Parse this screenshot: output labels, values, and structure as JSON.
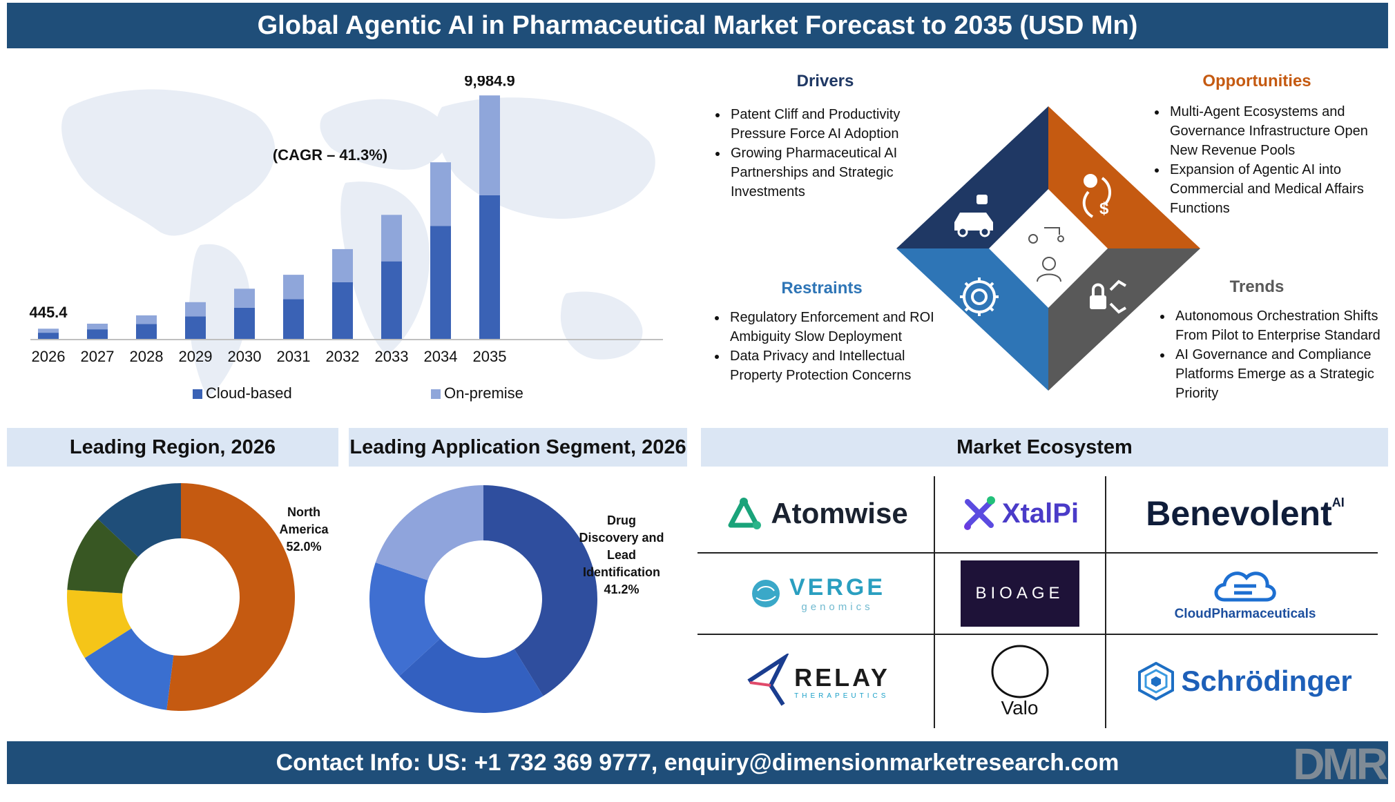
{
  "header": {
    "title": "Global Agentic AI in Pharmaceutical Market Forecast to 2035 (USD Mn)"
  },
  "footer": {
    "contact": "Contact Info: US: +1 732 369 9777, enquiry@dimensionmarketresearch.com",
    "logo_text": "DMR"
  },
  "colors": {
    "navy": "#1f4e79",
    "cloud": "#3a62b5",
    "onprem": "#8fa6da",
    "orange": "#c55a11",
    "panel": "#dbe6f4"
  },
  "chart_data": [
    {
      "type": "bar",
      "stacked": true,
      "categories": [
        "2026",
        "2027",
        "2028",
        "2029",
        "2030",
        "2031",
        "2032",
        "2033",
        "2034",
        "2035"
      ],
      "series": [
        {
          "name": "Cloud-based",
          "values": [
            280,
            420,
            640,
            950,
            1300,
            1650,
            2350,
            3200,
            4650,
            5900
          ]
        },
        {
          "name": "On-premise",
          "values": [
            165.4,
            230,
            350,
            580,
            780,
            1000,
            1350,
            1900,
            2600,
            4084.9
          ]
        }
      ],
      "totals": [
        445.4,
        650,
        990,
        1530,
        2080,
        2650,
        3700,
        5100,
        7250,
        9984.9
      ],
      "data_labels": {
        "first": "445.4",
        "last": "9,984.9"
      },
      "annotation": "(CAGR – 41.3%)",
      "ylim": [
        0,
        10500
      ],
      "legend_position": "bottom"
    },
    {
      "type": "pie",
      "donut": true,
      "title": "Leading Region, 2026",
      "slices": [
        {
          "name": "North America",
          "value": 52.0,
          "color": "#c55a11"
        },
        {
          "name": "",
          "value": 14.0,
          "color": "#3a6fd0"
        },
        {
          "name": "",
          "value": 10.0,
          "color": "#f5c518"
        },
        {
          "name": "",
          "value": 11.0,
          "color": "#385723"
        },
        {
          "name": "",
          "value": 13.0,
          "color": "#1f4e79"
        }
      ],
      "label": {
        "lines": [
          "North",
          "America",
          "52.0%"
        ]
      }
    },
    {
      "type": "pie",
      "donut": true,
      "title": "Leading Application Segment, 2026",
      "slices": [
        {
          "name": "Drug Discovery and Lead Identification",
          "value": 41.2,
          "color": "#2f4e9e"
        },
        {
          "name": "",
          "value": 22.0,
          "color": "#3360c0"
        },
        {
          "name": "",
          "value": 17.0,
          "color": "#3f6fd1"
        },
        {
          "name": "",
          "value": 19.8,
          "color": "#8fa4dc"
        }
      ],
      "label": {
        "lines": [
          "Drug",
          "Discovery and",
          "Lead",
          "Identification",
          "41.2%"
        ]
      }
    }
  ],
  "dynamics": {
    "drivers": {
      "title": "Drivers",
      "items": [
        "Patent Cliff and Productivity Pressure Force AI Adoption",
        "Growing Pharmaceutical AI Partnerships and Strategic Investments"
      ]
    },
    "opportunities": {
      "title": "Opportunities",
      "items": [
        "Multi-Agent Ecosystems and Governance Infrastructure Open New Revenue Pools",
        "Expansion of Agentic AI into Commercial and Medical Affairs Functions"
      ]
    },
    "restraints": {
      "title": "Restraints",
      "items": [
        "Regulatory Enforcement and ROI Ambiguity Slow Deployment",
        "Data Privacy and Intellectual Property Protection Concerns"
      ]
    },
    "trends": {
      "title": "Trends",
      "items": [
        "Autonomous Orchestration Shifts From Pilot to Enterprise Standard",
        "AI Governance and Compliance Platforms Emerge as a Strategic Priority"
      ]
    },
    "colors": {
      "drivers": "#1f3864",
      "opportunities": "#c55a11",
      "restraints": "#2e75b6",
      "trends": "#595959"
    }
  },
  "ecosystem": {
    "title": "Market Ecosystem",
    "logos": [
      "Atomwise",
      "XtalPi",
      "Benevolent",
      "VERGE",
      "genomics",
      "BIOAGE",
      "CloudPharmaceuticals",
      "RELAY",
      "THERAPEUTICS",
      "Valo",
      "Schrödinger"
    ],
    "benevolent_sup": "AI"
  }
}
